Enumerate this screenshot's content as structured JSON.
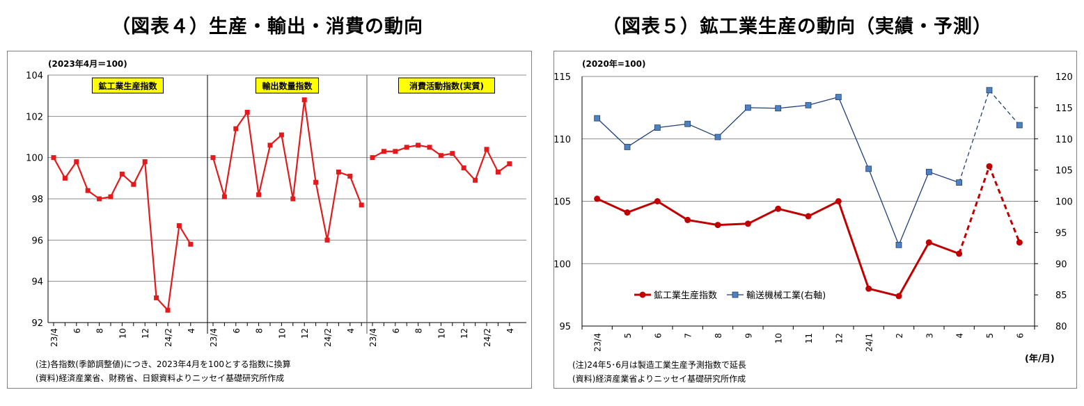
{
  "figure4": {
    "title": "（図表４）生産・輸出・消費の動向",
    "unit_note": "(2023年4月＝100)",
    "note": "(注)各指数(季節調整値)につき、2023年4月を100とする指数に換算",
    "source": "(資料)経済産業省、財務省、日銀資料よりニッセイ基礎研究所作成"
  },
  "figure5": {
    "title": "（図表５）鉱工業生産の動向（実績・予測）",
    "unit_note": "(2020年=100)",
    "x_unit": "(年/月)",
    "note": "(注)24年5･6月は製造工業生産予測指数で延長",
    "source": "(資料)経済産業省よりニッセイ基礎研究所作成"
  },
  "chart_data": [
    {
      "type": "line",
      "ylim": [
        92,
        104
      ],
      "yticks": [
        92,
        94,
        96,
        98,
        100,
        102,
        104
      ],
      "grid": true,
      "color": "#e31a1c",
      "panels": [
        {
          "label": "鉱工業生産指数",
          "tick_labels": [
            "23/4",
            "6",
            "8",
            "10",
            "12",
            "24/2",
            "4"
          ],
          "values": [
            100.0,
            99.0,
            99.8,
            98.4,
            98.0,
            98.1,
            99.2,
            98.7,
            99.8,
            93.2,
            92.6,
            96.7,
            95.8
          ]
        },
        {
          "label": "輸出数量指数",
          "tick_labels": [
            "23/4",
            "6",
            "8",
            "10",
            "12",
            "24/2",
            "4"
          ],
          "values": [
            100.0,
            98.1,
            101.4,
            102.2,
            98.2,
            100.6,
            101.1,
            98.0,
            102.8,
            98.8,
            96.0,
            99.3,
            99.1,
            97.7
          ]
        },
        {
          "label": "消費活動指数(実質)",
          "tick_labels": [
            "23/4",
            "6",
            "8",
            "10",
            "12",
            "24/2",
            "4"
          ],
          "values": [
            100.0,
            100.3,
            100.3,
            100.5,
            100.6,
            100.5,
            100.1,
            100.2,
            99.5,
            98.9,
            100.4,
            99.3,
            99.7
          ]
        }
      ]
    },
    {
      "type": "line",
      "categories": [
        "23/4",
        "5",
        "6",
        "7",
        "8",
        "9",
        "10",
        "11",
        "12",
        "24/1",
        "2",
        "3",
        "4",
        "5",
        "6"
      ],
      "ylim": [
        95,
        115
      ],
      "yticks": [
        95,
        100,
        105,
        110,
        115
      ],
      "y2lim": [
        80,
        120
      ],
      "y2ticks": [
        80,
        85,
        90,
        95,
        100,
        105,
        110,
        115,
        120
      ],
      "grid": true,
      "legend_position": "bottom-left",
      "forecast_from_index": 12,
      "series": [
        {
          "name": "鉱工業生産指数",
          "axis": "left",
          "color": "#c00000",
          "values": [
            105.2,
            104.1,
            105.0,
            103.5,
            103.1,
            103.2,
            104.4,
            103.8,
            105.0,
            98.0,
            97.4,
            101.7,
            100.8,
            107.8,
            101.7
          ]
        },
        {
          "name": "輸送機械工業(右軸)",
          "axis": "right",
          "color": "#1f3f7a",
          "marker_color": "#4f81bd",
          "values": [
            113.3,
            108.7,
            111.8,
            112.4,
            110.3,
            115.0,
            114.9,
            115.4,
            116.7,
            105.2,
            93.0,
            104.7,
            103.0,
            117.8,
            112.2
          ]
        }
      ]
    }
  ]
}
